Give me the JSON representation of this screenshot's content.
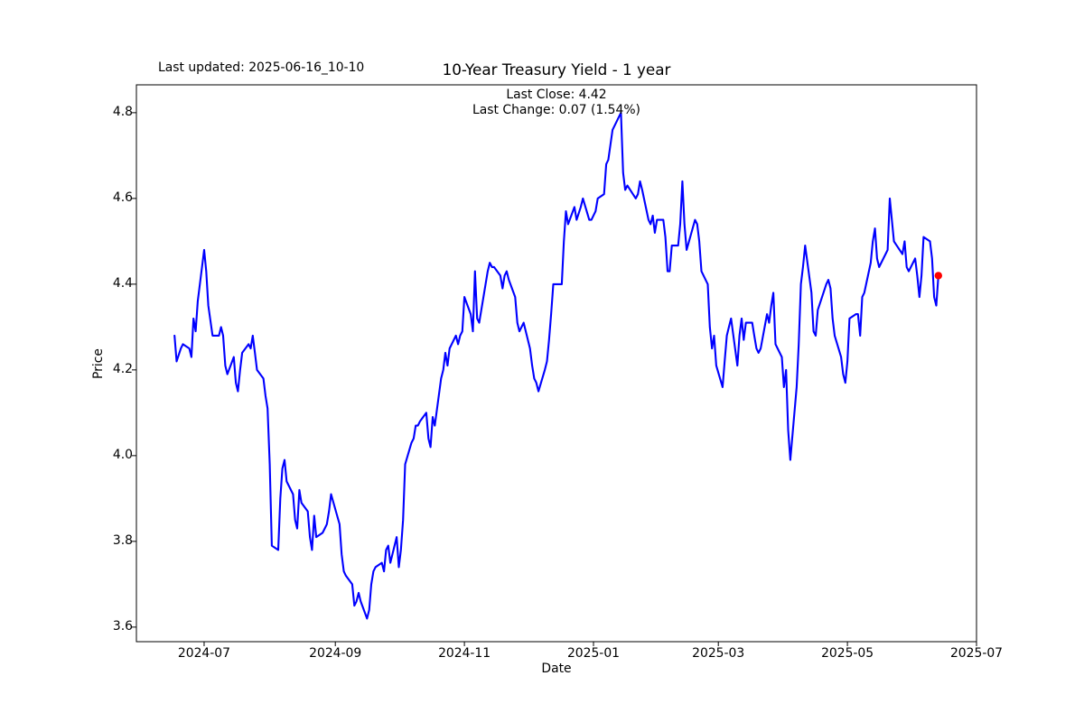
{
  "header": {
    "last_updated": "Last updated: 2025-06-16_10-10",
    "title": "10-Year Treasury Yield - 1 year"
  },
  "annotation": {
    "last_close": "Last Close: 4.42",
    "last_change": "Last Change: 0.07 (1.54%)"
  },
  "chart_data": {
    "type": "line",
    "title": "10-Year Treasury Yield - 1 year",
    "xlabel": "Date",
    "ylabel": "Price",
    "grid": false,
    "legend": false,
    "line_color": "#0000ff",
    "marker_color": "#ff0000",
    "axis_color": "#000000",
    "background_color": "#ffffff",
    "xlim": [
      "2024-05-30",
      "2025-07-01"
    ],
    "ylim": [
      3.566,
      4.865
    ],
    "x_ticks": [
      {
        "date": "2024-07-01",
        "label": "2024-07"
      },
      {
        "date": "2024-09-01",
        "label": "2024-09"
      },
      {
        "date": "2024-11-01",
        "label": "2024-11"
      },
      {
        "date": "2025-01-01",
        "label": "2025-01"
      },
      {
        "date": "2025-03-01",
        "label": "2025-03"
      },
      {
        "date": "2025-05-01",
        "label": "2025-05"
      },
      {
        "date": "2025-07-01",
        "label": "2025-07"
      }
    ],
    "y_ticks": [
      {
        "value": 3.6,
        "label": "3.6"
      },
      {
        "value": 3.8,
        "label": "3.8"
      },
      {
        "value": 4.0,
        "label": "4.0"
      },
      {
        "value": 4.2,
        "label": "4.2"
      },
      {
        "value": 4.4,
        "label": "4.4"
      },
      {
        "value": 4.6,
        "label": "4.6"
      },
      {
        "value": 4.8,
        "label": "4.8"
      }
    ],
    "last_point": {
      "date": "2025-06-13",
      "value": 4.42,
      "color": "#ff0000"
    },
    "series": [
      {
        "name": "10-Year Treasury Yield",
        "color": "#0000ff",
        "points": [
          [
            "2024-06-17",
            4.28
          ],
          [
            "2024-06-18",
            4.22
          ],
          [
            "2024-06-20",
            4.25
          ],
          [
            "2024-06-21",
            4.26
          ],
          [
            "2024-06-24",
            4.25
          ],
          [
            "2024-06-25",
            4.23
          ],
          [
            "2024-06-26",
            4.32
          ],
          [
            "2024-06-27",
            4.29
          ],
          [
            "2024-06-28",
            4.36
          ],
          [
            "2024-07-01",
            4.48
          ],
          [
            "2024-07-02",
            4.43
          ],
          [
            "2024-07-03",
            4.35
          ],
          [
            "2024-07-05",
            4.28
          ],
          [
            "2024-07-08",
            4.28
          ],
          [
            "2024-07-09",
            4.3
          ],
          [
            "2024-07-10",
            4.28
          ],
          [
            "2024-07-11",
            4.21
          ],
          [
            "2024-07-12",
            4.19
          ],
          [
            "2024-07-15",
            4.23
          ],
          [
            "2024-07-16",
            4.17
          ],
          [
            "2024-07-17",
            4.15
          ],
          [
            "2024-07-18",
            4.2
          ],
          [
            "2024-07-19",
            4.24
          ],
          [
            "2024-07-22",
            4.26
          ],
          [
            "2024-07-23",
            4.25
          ],
          [
            "2024-07-24",
            4.28
          ],
          [
            "2024-07-25",
            4.24
          ],
          [
            "2024-07-26",
            4.2
          ],
          [
            "2024-07-29",
            4.18
          ],
          [
            "2024-07-30",
            4.14
          ],
          [
            "2024-07-31",
            4.11
          ],
          [
            "2024-08-01",
            3.98
          ],
          [
            "2024-08-02",
            3.79
          ],
          [
            "2024-08-05",
            3.78
          ],
          [
            "2024-08-06",
            3.9
          ],
          [
            "2024-08-07",
            3.97
          ],
          [
            "2024-08-08",
            3.99
          ],
          [
            "2024-08-09",
            3.94
          ],
          [
            "2024-08-12",
            3.91
          ],
          [
            "2024-08-13",
            3.85
          ],
          [
            "2024-08-14",
            3.83
          ],
          [
            "2024-08-15",
            3.92
          ],
          [
            "2024-08-16",
            3.89
          ],
          [
            "2024-08-19",
            3.87
          ],
          [
            "2024-08-20",
            3.81
          ],
          [
            "2024-08-21",
            3.78
          ],
          [
            "2024-08-22",
            3.86
          ],
          [
            "2024-08-23",
            3.81
          ],
          [
            "2024-08-26",
            3.82
          ],
          [
            "2024-08-27",
            3.83
          ],
          [
            "2024-08-28",
            3.84
          ],
          [
            "2024-08-29",
            3.87
          ],
          [
            "2024-08-30",
            3.91
          ],
          [
            "2024-09-03",
            3.84
          ],
          [
            "2024-09-04",
            3.77
          ],
          [
            "2024-09-05",
            3.73
          ],
          [
            "2024-09-06",
            3.72
          ],
          [
            "2024-09-09",
            3.7
          ],
          [
            "2024-09-10",
            3.65
          ],
          [
            "2024-09-11",
            3.66
          ],
          [
            "2024-09-12",
            3.68
          ],
          [
            "2024-09-13",
            3.66
          ],
          [
            "2024-09-16",
            3.62
          ],
          [
            "2024-09-17",
            3.64
          ],
          [
            "2024-09-18",
            3.7
          ],
          [
            "2024-09-19",
            3.73
          ],
          [
            "2024-09-20",
            3.74
          ],
          [
            "2024-09-23",
            3.75
          ],
          [
            "2024-09-24",
            3.73
          ],
          [
            "2024-09-25",
            3.78
          ],
          [
            "2024-09-26",
            3.79
          ],
          [
            "2024-09-27",
            3.75
          ],
          [
            "2024-09-30",
            3.81
          ],
          [
            "2024-10-01",
            3.74
          ],
          [
            "2024-10-02",
            3.78
          ],
          [
            "2024-10-03",
            3.85
          ],
          [
            "2024-10-04",
            3.98
          ],
          [
            "2024-10-07",
            4.03
          ],
          [
            "2024-10-08",
            4.04
          ],
          [
            "2024-10-09",
            4.07
          ],
          [
            "2024-10-10",
            4.07
          ],
          [
            "2024-10-11",
            4.08
          ],
          [
            "2024-10-14",
            4.1
          ],
          [
            "2024-10-15",
            4.04
          ],
          [
            "2024-10-16",
            4.02
          ],
          [
            "2024-10-17",
            4.09
          ],
          [
            "2024-10-18",
            4.07
          ],
          [
            "2024-10-21",
            4.18
          ],
          [
            "2024-10-22",
            4.2
          ],
          [
            "2024-10-23",
            4.24
          ],
          [
            "2024-10-24",
            4.21
          ],
          [
            "2024-10-25",
            4.25
          ],
          [
            "2024-10-28",
            4.28
          ],
          [
            "2024-10-29",
            4.26
          ],
          [
            "2024-10-30",
            4.28
          ],
          [
            "2024-10-31",
            4.29
          ],
          [
            "2024-11-01",
            4.37
          ],
          [
            "2024-11-04",
            4.33
          ],
          [
            "2024-11-05",
            4.29
          ],
          [
            "2024-11-06",
            4.43
          ],
          [
            "2024-11-07",
            4.32
          ],
          [
            "2024-11-08",
            4.31
          ],
          [
            "2024-11-12",
            4.43
          ],
          [
            "2024-11-13",
            4.45
          ],
          [
            "2024-11-14",
            4.44
          ],
          [
            "2024-11-15",
            4.44
          ],
          [
            "2024-11-18",
            4.42
          ],
          [
            "2024-11-19",
            4.39
          ],
          [
            "2024-11-20",
            4.42
          ],
          [
            "2024-11-21",
            4.43
          ],
          [
            "2024-11-22",
            4.41
          ],
          [
            "2024-11-25",
            4.37
          ],
          [
            "2024-11-26",
            4.31
          ],
          [
            "2024-11-27",
            4.29
          ],
          [
            "2024-11-29",
            4.31
          ],
          [
            "2024-12-02",
            4.25
          ],
          [
            "2024-12-03",
            4.21
          ],
          [
            "2024-12-04",
            4.18
          ],
          [
            "2024-12-05",
            4.17
          ],
          [
            "2024-12-06",
            4.15
          ],
          [
            "2024-12-09",
            4.2
          ],
          [
            "2024-12-10",
            4.22
          ],
          [
            "2024-12-11",
            4.27
          ],
          [
            "2024-12-12",
            4.33
          ],
          [
            "2024-12-13",
            4.4
          ],
          [
            "2024-12-16",
            4.4
          ],
          [
            "2024-12-17",
            4.4
          ],
          [
            "2024-12-18",
            4.5
          ],
          [
            "2024-12-19",
            4.57
          ],
          [
            "2024-12-20",
            4.54
          ],
          [
            "2024-12-23",
            4.58
          ],
          [
            "2024-12-24",
            4.55
          ],
          [
            "2024-12-26",
            4.58
          ],
          [
            "2024-12-27",
            4.6
          ],
          [
            "2024-12-30",
            4.55
          ],
          [
            "2024-12-31",
            4.55
          ],
          [
            "2025-01-02",
            4.57
          ],
          [
            "2025-01-03",
            4.6
          ],
          [
            "2025-01-06",
            4.61
          ],
          [
            "2025-01-07",
            4.68
          ],
          [
            "2025-01-08",
            4.69
          ],
          [
            "2025-01-10",
            4.76
          ],
          [
            "2025-01-13",
            4.79
          ],
          [
            "2025-01-14",
            4.8
          ],
          [
            "2025-01-15",
            4.66
          ],
          [
            "2025-01-16",
            4.62
          ],
          [
            "2025-01-17",
            4.63
          ],
          [
            "2025-01-21",
            4.6
          ],
          [
            "2025-01-22",
            4.61
          ],
          [
            "2025-01-23",
            4.64
          ],
          [
            "2025-01-24",
            4.62
          ],
          [
            "2025-01-27",
            4.55
          ],
          [
            "2025-01-28",
            4.54
          ],
          [
            "2025-01-29",
            4.56
          ],
          [
            "2025-01-30",
            4.52
          ],
          [
            "2025-01-31",
            4.55
          ],
          [
            "2025-02-03",
            4.55
          ],
          [
            "2025-02-04",
            4.51
          ],
          [
            "2025-02-05",
            4.43
          ],
          [
            "2025-02-06",
            4.43
          ],
          [
            "2025-02-07",
            4.49
          ],
          [
            "2025-02-10",
            4.49
          ],
          [
            "2025-02-11",
            4.54
          ],
          [
            "2025-02-12",
            4.64
          ],
          [
            "2025-02-13",
            4.54
          ],
          [
            "2025-02-14",
            4.48
          ],
          [
            "2025-02-18",
            4.55
          ],
          [
            "2025-02-19",
            4.54
          ],
          [
            "2025-02-20",
            4.5
          ],
          [
            "2025-02-21",
            4.43
          ],
          [
            "2025-02-24",
            4.4
          ],
          [
            "2025-02-25",
            4.3
          ],
          [
            "2025-02-26",
            4.25
          ],
          [
            "2025-02-27",
            4.28
          ],
          [
            "2025-02-28",
            4.21
          ],
          [
            "2025-03-03",
            4.16
          ],
          [
            "2025-03-04",
            4.22
          ],
          [
            "2025-03-05",
            4.28
          ],
          [
            "2025-03-06",
            4.3
          ],
          [
            "2025-03-07",
            4.32
          ],
          [
            "2025-03-10",
            4.21
          ],
          [
            "2025-03-11",
            4.28
          ],
          [
            "2025-03-12",
            4.32
          ],
          [
            "2025-03-13",
            4.27
          ],
          [
            "2025-03-14",
            4.31
          ],
          [
            "2025-03-17",
            4.31
          ],
          [
            "2025-03-18",
            4.28
          ],
          [
            "2025-03-19",
            4.25
          ],
          [
            "2025-03-20",
            4.24
          ],
          [
            "2025-03-21",
            4.25
          ],
          [
            "2025-03-24",
            4.33
          ],
          [
            "2025-03-25",
            4.31
          ],
          [
            "2025-03-26",
            4.35
          ],
          [
            "2025-03-27",
            4.38
          ],
          [
            "2025-03-28",
            4.26
          ],
          [
            "2025-03-31",
            4.23
          ],
          [
            "2025-04-01",
            4.16
          ],
          [
            "2025-04-02",
            4.2
          ],
          [
            "2025-04-03",
            4.06
          ],
          [
            "2025-04-04",
            3.99
          ],
          [
            "2025-04-07",
            4.16
          ],
          [
            "2025-04-08",
            4.26
          ],
          [
            "2025-04-09",
            4.4
          ],
          [
            "2025-04-10",
            4.44
          ],
          [
            "2025-04-11",
            4.49
          ],
          [
            "2025-04-14",
            4.38
          ],
          [
            "2025-04-15",
            4.29
          ],
          [
            "2025-04-16",
            4.28
          ],
          [
            "2025-04-17",
            4.34
          ],
          [
            "2025-04-21",
            4.4
          ],
          [
            "2025-04-22",
            4.41
          ],
          [
            "2025-04-23",
            4.39
          ],
          [
            "2025-04-24",
            4.32
          ],
          [
            "2025-04-25",
            4.28
          ],
          [
            "2025-04-28",
            4.23
          ],
          [
            "2025-04-29",
            4.19
          ],
          [
            "2025-04-30",
            4.17
          ],
          [
            "2025-05-01",
            4.22
          ],
          [
            "2025-05-02",
            4.32
          ],
          [
            "2025-05-05",
            4.33
          ],
          [
            "2025-05-06",
            4.33
          ],
          [
            "2025-05-07",
            4.28
          ],
          [
            "2025-05-08",
            4.37
          ],
          [
            "2025-05-09",
            4.38
          ],
          [
            "2025-05-12",
            4.45
          ],
          [
            "2025-05-13",
            4.5
          ],
          [
            "2025-05-14",
            4.53
          ],
          [
            "2025-05-15",
            4.46
          ],
          [
            "2025-05-16",
            4.44
          ],
          [
            "2025-05-19",
            4.47
          ],
          [
            "2025-05-20",
            4.48
          ],
          [
            "2025-05-21",
            4.6
          ],
          [
            "2025-05-22",
            4.55
          ],
          [
            "2025-05-23",
            4.5
          ],
          [
            "2025-05-27",
            4.47
          ],
          [
            "2025-05-28",
            4.5
          ],
          [
            "2025-05-29",
            4.44
          ],
          [
            "2025-05-30",
            4.43
          ],
          [
            "2025-06-02",
            4.46
          ],
          [
            "2025-06-03",
            4.42
          ],
          [
            "2025-06-04",
            4.37
          ],
          [
            "2025-06-05",
            4.42
          ],
          [
            "2025-06-06",
            4.51
          ],
          [
            "2025-06-09",
            4.5
          ],
          [
            "2025-06-10",
            4.46
          ],
          [
            "2025-06-11",
            4.37
          ],
          [
            "2025-06-12",
            4.35
          ],
          [
            "2025-06-13",
            4.42
          ]
        ]
      }
    ]
  }
}
